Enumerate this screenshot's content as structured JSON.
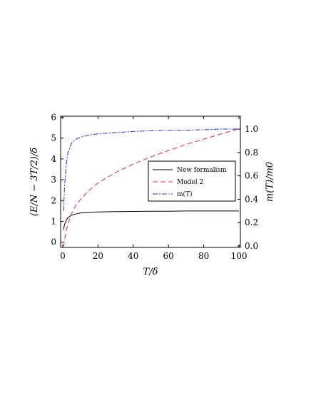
{
  "chart_data": {
    "type": "line",
    "x_label": "T/δ",
    "y_label": "(E/N − 3T/2)/δ",
    "y2_label": "m(T)/m0",
    "x": [
      0.5,
      1,
      2,
      3,
      5,
      7,
      10,
      15,
      20,
      30,
      40,
      50,
      60,
      70,
      80,
      90,
      100
    ],
    "series": [
      {
        "name": "New formalism",
        "color": "#000000",
        "dash": "none",
        "values": [
          0.6,
          0.85,
          1.05,
          1.18,
          1.3,
          1.35,
          1.4,
          1.43,
          1.45,
          1.47,
          1.48,
          1.49,
          1.49,
          1.5,
          1.5,
          1.5,
          1.5
        ]
      },
      {
        "name": "Model 2",
        "color": "#e8262a",
        "dash": "7 4",
        "values": [
          -0.2,
          0.1,
          0.55,
          0.9,
          1.35,
          1.7,
          2.05,
          2.5,
          2.85,
          3.35,
          3.75,
          4.1,
          4.4,
          4.7,
          4.95,
          5.2,
          5.45
        ]
      },
      {
        "name": "m(T)",
        "color": "#2233dd",
        "dash": "7 2 2 2",
        "axis": "y2",
        "values": [
          0.3,
          0.5,
          0.7,
          0.8,
          0.88,
          0.91,
          0.93,
          0.95,
          0.96,
          0.97,
          0.98,
          0.985,
          0.99,
          0.99,
          0.995,
          1.0,
          1.0
        ]
      }
    ],
    "xlim": [
      -1.2,
      100.8
    ],
    "xticks": [
      0,
      20,
      40,
      60,
      80,
      100
    ],
    "ylim": [
      -0.25,
      6.05
    ],
    "yticks": [
      0,
      1,
      2,
      3,
      4,
      5,
      6
    ],
    "y2lim": [
      -0.012,
      1.11
    ],
    "y2ticks": [
      {
        "value": 0,
        "label": "0.0"
      },
      {
        "value": 0.2,
        "label": "0.2"
      },
      {
        "value": 0.4,
        "label": "0.4"
      },
      {
        "value": 0.6,
        "label": "0.6"
      },
      {
        "value": 0.8,
        "label": "0.8"
      },
      {
        "value": 1,
        "label": "1.0"
      }
    ],
    "legend": "right"
  }
}
